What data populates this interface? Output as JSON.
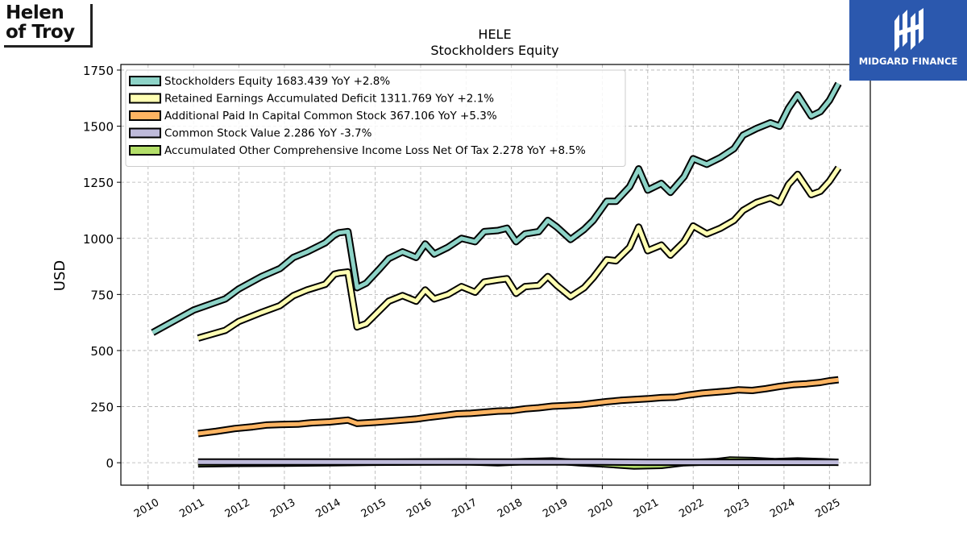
{
  "logos": {
    "left_line1": "Helen",
    "left_line2": "of Troy",
    "right_text": "MIDGARD FINANCE"
  },
  "chart_data": {
    "type": "line",
    "title": "HELE",
    "subtitle": "Stockholders  Equity",
    "ylabel": "USD",
    "xlabel": "",
    "xlim": [
      2009.4,
      2025.9
    ],
    "ylim": [
      -100,
      1775
    ],
    "yticks": [
      0,
      250,
      500,
      750,
      1000,
      1250,
      1500,
      1750
    ],
    "xticks": [
      "2010",
      "2011",
      "2012",
      "2013",
      "2014",
      "2015",
      "2016",
      "2017",
      "2018",
      "2019",
      "2020",
      "2021",
      "2022",
      "2023",
      "2024",
      "2025"
    ],
    "grid": true,
    "legend_position": "top-left",
    "series": [
      {
        "name": "Stockholders Equity  1683.439 YoY +2.8%",
        "color": "#8dd3c7",
        "points": [
          [
            2010.1,
            580
          ],
          [
            2011.0,
            680
          ],
          [
            2011.7,
            730
          ],
          [
            2012.0,
            775
          ],
          [
            2012.5,
            830
          ],
          [
            2012.9,
            865
          ],
          [
            2013.2,
            915
          ],
          [
            2013.5,
            940
          ],
          [
            2013.9,
            980
          ],
          [
            2014.1,
            1015
          ],
          [
            2014.2,
            1025
          ],
          [
            2014.4,
            1030
          ],
          [
            2014.6,
            780
          ],
          [
            2014.8,
            800
          ],
          [
            2015.1,
            865
          ],
          [
            2015.3,
            910
          ],
          [
            2015.6,
            940
          ],
          [
            2015.9,
            915
          ],
          [
            2016.1,
            975
          ],
          [
            2016.3,
            930
          ],
          [
            2016.6,
            960
          ],
          [
            2016.9,
            1000
          ],
          [
            2017.2,
            985
          ],
          [
            2017.4,
            1030
          ],
          [
            2017.7,
            1035
          ],
          [
            2017.9,
            1045
          ],
          [
            2018.1,
            985
          ],
          [
            2018.3,
            1020
          ],
          [
            2018.6,
            1030
          ],
          [
            2018.8,
            1080
          ],
          [
            2019.0,
            1050
          ],
          [
            2019.3,
            995
          ],
          [
            2019.6,
            1040
          ],
          [
            2019.8,
            1080
          ],
          [
            2020.1,
            1165
          ],
          [
            2020.3,
            1165
          ],
          [
            2020.6,
            1230
          ],
          [
            2020.8,
            1310
          ],
          [
            2021.0,
            1215
          ],
          [
            2021.3,
            1245
          ],
          [
            2021.5,
            1205
          ],
          [
            2021.8,
            1275
          ],
          [
            2022.0,
            1355
          ],
          [
            2022.3,
            1330
          ],
          [
            2022.6,
            1360
          ],
          [
            2022.9,
            1400
          ],
          [
            2023.1,
            1460
          ],
          [
            2023.4,
            1490
          ],
          [
            2023.7,
            1515
          ],
          [
            2023.9,
            1500
          ],
          [
            2024.1,
            1580
          ],
          [
            2024.3,
            1640
          ],
          [
            2024.6,
            1545
          ],
          [
            2024.8,
            1565
          ],
          [
            2025.0,
            1615
          ],
          [
            2025.2,
            1690
          ]
        ]
      },
      {
        "name": "Retained Earnings Accumulated Deficit  1311.769 YoY +2.1%",
        "color": "#ffffb3",
        "points": [
          [
            2011.1,
            555
          ],
          [
            2011.7,
            590
          ],
          [
            2012.0,
            630
          ],
          [
            2012.5,
            670
          ],
          [
            2012.9,
            700
          ],
          [
            2013.2,
            745
          ],
          [
            2013.5,
            770
          ],
          [
            2013.9,
            795
          ],
          [
            2014.1,
            840
          ],
          [
            2014.2,
            845
          ],
          [
            2014.4,
            850
          ],
          [
            2014.6,
            605
          ],
          [
            2014.8,
            620
          ],
          [
            2015.1,
            680
          ],
          [
            2015.3,
            720
          ],
          [
            2015.6,
            745
          ],
          [
            2015.9,
            720
          ],
          [
            2016.1,
            770
          ],
          [
            2016.3,
            730
          ],
          [
            2016.6,
            750
          ],
          [
            2016.9,
            785
          ],
          [
            2017.2,
            760
          ],
          [
            2017.4,
            805
          ],
          [
            2017.7,
            815
          ],
          [
            2017.9,
            820
          ],
          [
            2018.1,
            755
          ],
          [
            2018.3,
            785
          ],
          [
            2018.6,
            790
          ],
          [
            2018.8,
            830
          ],
          [
            2019.0,
            790
          ],
          [
            2019.3,
            740
          ],
          [
            2019.6,
            780
          ],
          [
            2019.8,
            825
          ],
          [
            2020.1,
            905
          ],
          [
            2020.3,
            900
          ],
          [
            2020.6,
            960
          ],
          [
            2020.8,
            1050
          ],
          [
            2021.0,
            945
          ],
          [
            2021.3,
            970
          ],
          [
            2021.5,
            925
          ],
          [
            2021.8,
            985
          ],
          [
            2022.0,
            1055
          ],
          [
            2022.3,
            1020
          ],
          [
            2022.6,
            1045
          ],
          [
            2022.9,
            1080
          ],
          [
            2023.1,
            1125
          ],
          [
            2023.4,
            1160
          ],
          [
            2023.7,
            1180
          ],
          [
            2023.9,
            1160
          ],
          [
            2024.1,
            1240
          ],
          [
            2024.3,
            1285
          ],
          [
            2024.6,
            1195
          ],
          [
            2024.8,
            1210
          ],
          [
            2025.0,
            1255
          ],
          [
            2025.2,
            1315
          ]
        ]
      },
      {
        "name": "Additional Paid In Capital Common Stock  367.106 YoY +5.3%",
        "color": "#fdb462",
        "points": [
          [
            2011.1,
            130
          ],
          [
            2011.5,
            140
          ],
          [
            2011.9,
            152
          ],
          [
            2012.3,
            160
          ],
          [
            2012.6,
            168
          ],
          [
            2012.9,
            170
          ],
          [
            2013.3,
            172
          ],
          [
            2013.6,
            178
          ],
          [
            2014.0,
            182
          ],
          [
            2014.2,
            186
          ],
          [
            2014.4,
            190
          ],
          [
            2014.6,
            175
          ],
          [
            2015.0,
            180
          ],
          [
            2015.3,
            185
          ],
          [
            2015.6,
            190
          ],
          [
            2015.9,
            195
          ],
          [
            2016.2,
            203
          ],
          [
            2016.5,
            210
          ],
          [
            2016.8,
            218
          ],
          [
            2017.1,
            220
          ],
          [
            2017.4,
            225
          ],
          [
            2017.7,
            230
          ],
          [
            2018.0,
            232
          ],
          [
            2018.3,
            240
          ],
          [
            2018.6,
            245
          ],
          [
            2018.9,
            252
          ],
          [
            2019.2,
            255
          ],
          [
            2019.5,
            258
          ],
          [
            2019.8,
            265
          ],
          [
            2020.1,
            272
          ],
          [
            2020.4,
            278
          ],
          [
            2020.7,
            282
          ],
          [
            2021.0,
            285
          ],
          [
            2021.3,
            290
          ],
          [
            2021.6,
            292
          ],
          [
            2021.9,
            302
          ],
          [
            2022.2,
            310
          ],
          [
            2022.5,
            315
          ],
          [
            2022.8,
            320
          ],
          [
            2023.0,
            325
          ],
          [
            2023.3,
            322
          ],
          [
            2023.6,
            330
          ],
          [
            2023.9,
            340
          ],
          [
            2024.2,
            348
          ],
          [
            2024.5,
            352
          ],
          [
            2024.8,
            358
          ],
          [
            2025.0,
            365
          ],
          [
            2025.2,
            370
          ]
        ]
      },
      {
        "name": "Common Stock Value  2.286 YoY -3.7%",
        "color": "#bebada",
        "points": [
          [
            2011.1,
            3
          ],
          [
            2012.0,
            3
          ],
          [
            2013.0,
            3
          ],
          [
            2014.0,
            3
          ],
          [
            2015.0,
            3
          ],
          [
            2016.0,
            3
          ],
          [
            2017.0,
            3
          ],
          [
            2018.0,
            3
          ],
          [
            2019.0,
            3
          ],
          [
            2020.0,
            3
          ],
          [
            2021.0,
            2
          ],
          [
            2022.0,
            2
          ],
          [
            2023.0,
            2
          ],
          [
            2024.0,
            2
          ],
          [
            2025.2,
            2
          ]
        ]
      },
      {
        "name": "Accumulated Other Comprehensive Income Loss Net Of Tax  2.278 YoY +8.5%",
        "color": "#b3de69",
        "points": [
          [
            2011.1,
            -5
          ],
          [
            2012.0,
            -3
          ],
          [
            2013.0,
            -2
          ],
          [
            2014.0,
            0
          ],
          [
            2015.0,
            2
          ],
          [
            2016.0,
            3
          ],
          [
            2017.0,
            4
          ],
          [
            2017.7,
            0
          ],
          [
            2018.3,
            5
          ],
          [
            2018.9,
            8
          ],
          [
            2019.5,
            0
          ],
          [
            2020.0,
            -5
          ],
          [
            2020.7,
            -15
          ],
          [
            2021.3,
            -12
          ],
          [
            2021.8,
            0
          ],
          [
            2022.5,
            5
          ],
          [
            2022.8,
            12
          ],
          [
            2023.3,
            10
          ],
          [
            2023.8,
            5
          ],
          [
            2024.3,
            8
          ],
          [
            2024.8,
            5
          ],
          [
            2025.2,
            2
          ]
        ]
      }
    ]
  }
}
